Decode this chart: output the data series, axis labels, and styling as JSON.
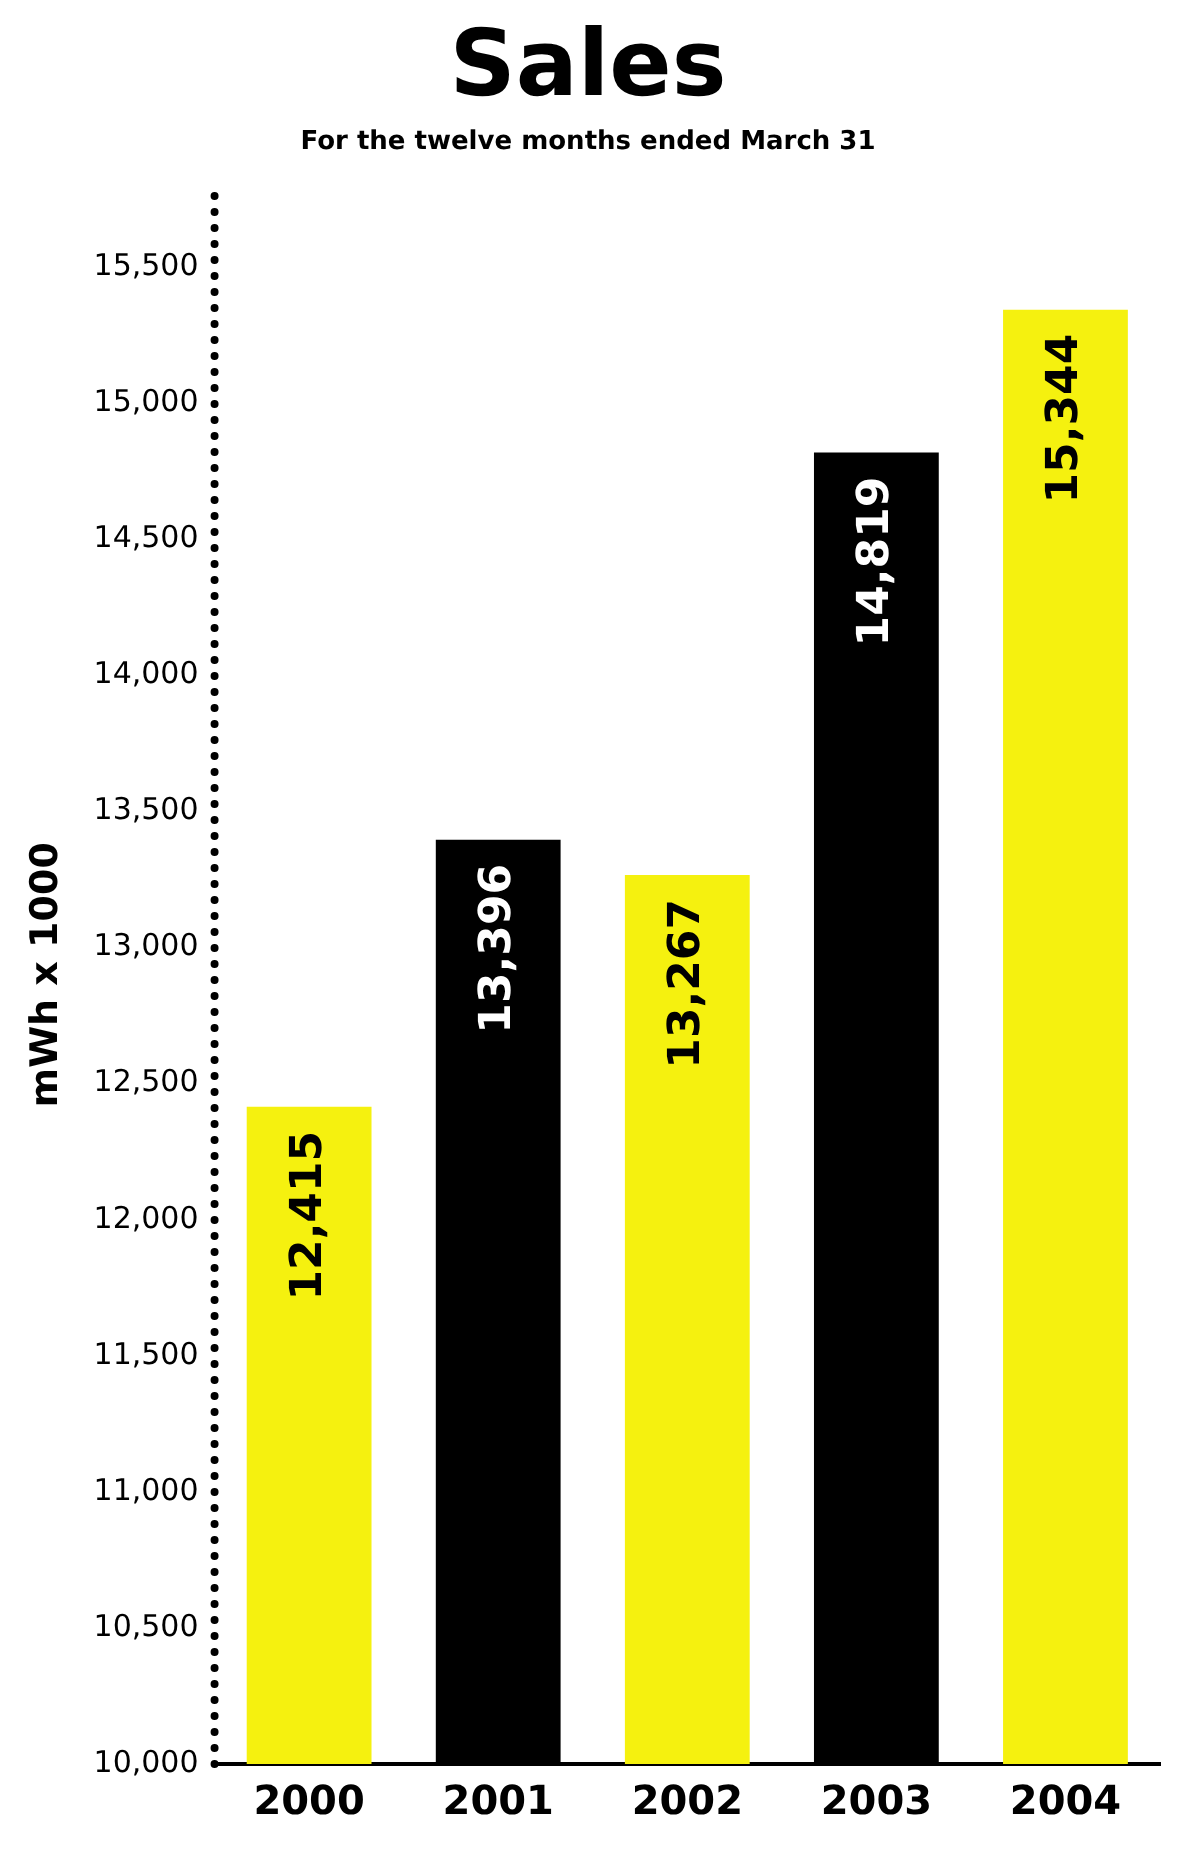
{
  "chart_data": {
    "type": "bar",
    "title": "Sales",
    "subtitle": "For the twelve months ended March 31",
    "ylabel": "mWh x 1000",
    "categories": [
      "2000",
      "2001",
      "2002",
      "2003",
      "2004"
    ],
    "values": [
      12415,
      13396,
      13267,
      14819,
      15344
    ],
    "colors": [
      "#f5f10f",
      "#000000",
      "#f5f10f",
      "#000000",
      "#f5f10f"
    ],
    "value_labels": [
      "12,415",
      "13,396",
      "13,267",
      "14,819",
      "15,344"
    ],
    "ylim": [
      10000,
      15800
    ],
    "yticks": [
      {
        "value": 10000,
        "label": "10,000"
      },
      {
        "value": 10500,
        "label": "10,500"
      },
      {
        "value": 11000,
        "label": "11,000"
      },
      {
        "value": 11500,
        "label": "11,500"
      },
      {
        "value": 12000,
        "label": "12,000"
      },
      {
        "value": 12500,
        "label": "12,500"
      },
      {
        "value": 13000,
        "label": "13,000"
      },
      {
        "value": 13500,
        "label": "13,500"
      },
      {
        "value": 14000,
        "label": "14,000"
      },
      {
        "value": 14500,
        "label": "14,500"
      },
      {
        "value": 15000,
        "label": "15,000"
      },
      {
        "value": 15500,
        "label": "15,500"
      }
    ],
    "grid": false,
    "legend": false
  }
}
